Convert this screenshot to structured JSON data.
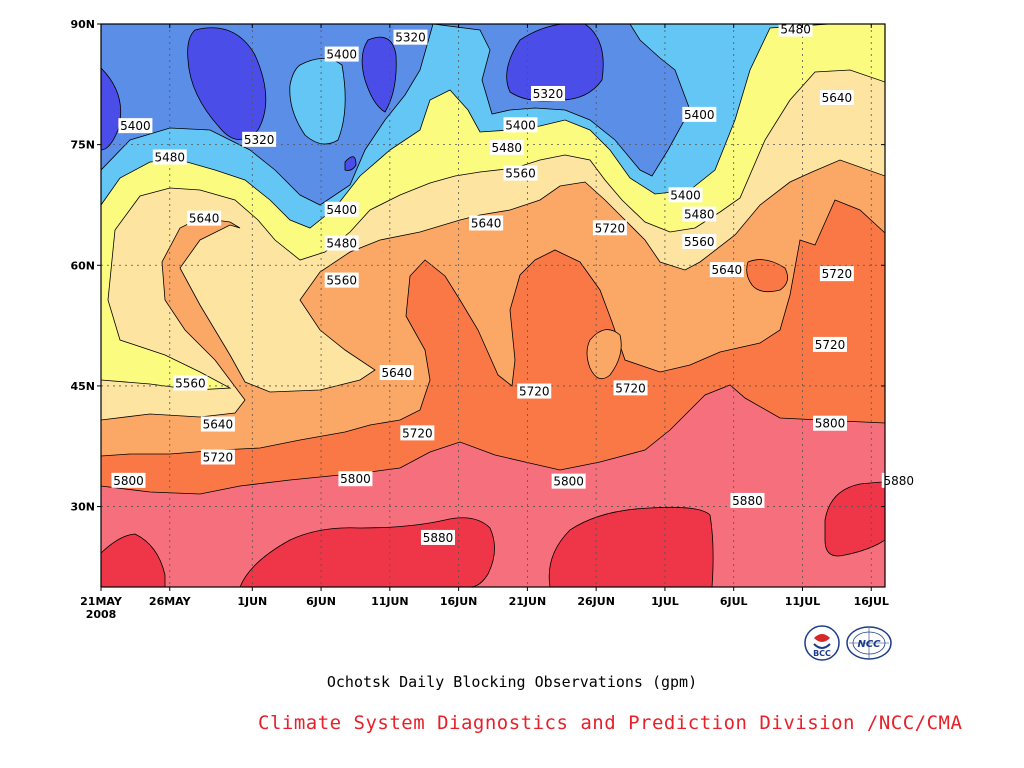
{
  "chart_data": {
    "type": "heatmap",
    "subtype": "filled-contour",
    "title": "Ochotsk Daily Blocking Observations (gpm)",
    "x_tick_labels": [
      "21MAY",
      "26MAY",
      "1JUN",
      "6JUN",
      "11JUN",
      "16JUN",
      "21JUN",
      "26JUN",
      "1JUL",
      "6JUL",
      "11JUL",
      "16JUL"
    ],
    "x_tick_days": [
      0,
      5,
      11,
      16,
      21,
      26,
      31,
      36,
      41,
      46,
      51,
      56
    ],
    "x_year_label": "2008",
    "xlim_days": [
      0,
      57
    ],
    "y_tick_labels": [
      "30N",
      "45N",
      "60N",
      "75N",
      "90N"
    ],
    "y_tick_values": [
      30,
      45,
      60,
      75,
      90
    ],
    "ylim": [
      20,
      90
    ],
    "grid": true,
    "contour_levels": [
      5320,
      5400,
      5480,
      5560,
      5640,
      5720,
      5800,
      5880
    ],
    "colors": {
      "lt5320": "#4a4de8",
      "5320_5400": "#5b8ee6",
      "5400_5480": "#63c6f5",
      "5480_5560": "#fbfb80",
      "5560_5640": "#fde4a0",
      "5640_5720": "#fba867",
      "5720_5800": "#fa7845",
      "5800_5880": "#f5707c",
      "gt5880": "#ee3648"
    },
    "contour_labels": [
      {
        "text": "5320",
        "day": 22.5,
        "lat": 88.3
      },
      {
        "text": "5480",
        "day": 50.5,
        "lat": 89.3
      },
      {
        "text": "5400",
        "day": 17.5,
        "lat": 86.2
      },
      {
        "text": "5320",
        "day": 32.5,
        "lat": 81.3
      },
      {
        "text": "5640",
        "day": 53.5,
        "lat": 80.8
      },
      {
        "text": "5400",
        "day": 2.5,
        "lat": 77.3
      },
      {
        "text": "5320",
        "day": 11.5,
        "lat": 75.6
      },
      {
        "text": "5400",
        "day": 30.5,
        "lat": 77.4
      },
      {
        "text": "5400",
        "day": 43.5,
        "lat": 78.7
      },
      {
        "text": "5480",
        "day": 5,
        "lat": 73.4
      },
      {
        "text": "5480",
        "day": 29.5,
        "lat": 74.6
      },
      {
        "text": "5560",
        "day": 30.5,
        "lat": 71.4
      },
      {
        "text": "5400",
        "day": 42.5,
        "lat": 68.7
      },
      {
        "text": "5400",
        "day": 17.5,
        "lat": 66.9
      },
      {
        "text": "5480",
        "day": 43.5,
        "lat": 66.3
      },
      {
        "text": "5640",
        "day": 7.5,
        "lat": 65.8
      },
      {
        "text": "5640",
        "day": 28,
        "lat": 65.2
      },
      {
        "text": "5720",
        "day": 37,
        "lat": 64.6
      },
      {
        "text": "5480",
        "day": 17.5,
        "lat": 62.7
      },
      {
        "text": "5560",
        "day": 43.5,
        "lat": 62.9
      },
      {
        "text": "5560",
        "day": 17.5,
        "lat": 58.1
      },
      {
        "text": "5640",
        "day": 45.5,
        "lat": 59.4
      },
      {
        "text": "5720",
        "day": 53.5,
        "lat": 58.9
      },
      {
        "text": "5720",
        "day": 53,
        "lat": 50.1
      },
      {
        "text": "5640",
        "day": 21.5,
        "lat": 46.6
      },
      {
        "text": "5560",
        "day": 6.5,
        "lat": 45.3
      },
      {
        "text": "5720",
        "day": 31.5,
        "lat": 44.3
      },
      {
        "text": "5720",
        "day": 38.5,
        "lat": 44.7
      },
      {
        "text": "5640",
        "day": 8.5,
        "lat": 40.2
      },
      {
        "text": "5800",
        "day": 53,
        "lat": 40.3
      },
      {
        "text": "5720",
        "day": 23,
        "lat": 39.1
      },
      {
        "text": "5720",
        "day": 8.5,
        "lat": 36.1
      },
      {
        "text": "5800",
        "day": 2,
        "lat": 33.2
      },
      {
        "text": "5800",
        "day": 18.5,
        "lat": 33.4
      },
      {
        "text": "5800",
        "day": 34,
        "lat": 33.1
      },
      {
        "text": "5880",
        "day": 58,
        "lat": 33.2
      },
      {
        "text": "5880",
        "day": 47,
        "lat": 30.7
      },
      {
        "text": "5880",
        "day": 24.5,
        "lat": 26.1
      }
    ]
  },
  "footer": {
    "caption": "Ochotsk Daily Blocking Observations (gpm)",
    "credit": "Climate System Diagnostics and Prediction Division /NCC/CMA",
    "logo_bcc_text": "BCC",
    "logo_ncc_text": "NCC"
  }
}
